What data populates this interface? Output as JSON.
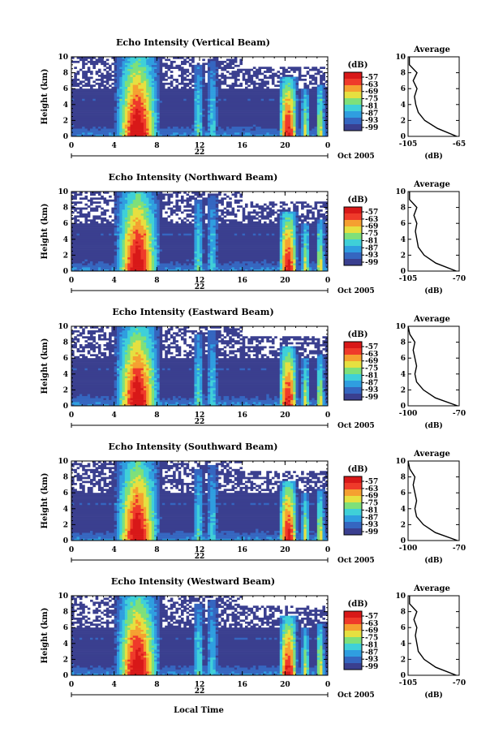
{
  "figure": {
    "xlabel": "Local Time",
    "colorbar_title": "(dB)",
    "colorbar_ticks": [
      "-57",
      "-63",
      "-69",
      "-75",
      "-81",
      "-87",
      "-93",
      "-99"
    ],
    "colormap": [
      "#ffffff",
      "#3a3f8f",
      "#3566c0",
      "#2f9ee0",
      "#3fd0d8",
      "#7ee07a",
      "#e6e040",
      "#f5a030",
      "#ef3a2a",
      "#d81818"
    ]
  },
  "chart_data": [
    {
      "type": "heatmap",
      "title": "Echo Intensity (Vertical Beam)",
      "ylabel": "Height (km)",
      "xlabel": "",
      "x_ticks": [
        "0",
        "4",
        "8",
        "12",
        "16",
        "20",
        "0"
      ],
      "y_ticks": [
        "0",
        "2",
        "4",
        "6",
        "8",
        "10"
      ],
      "xlim": [
        0,
        24
      ],
      "ylim": [
        0,
        10
      ],
      "date_mid": "22",
      "date_right": "Oct 2005",
      "colorbar": {
        "label": "(dB)",
        "range": [
          -99,
          -57
        ]
      },
      "profile": {
        "title": "Average",
        "xlabel": "(dB)",
        "x_ticks": [
          "-105",
          "-65"
        ],
        "xlim": [
          -105,
          -65
        ],
        "height_km": [
          0,
          1,
          2,
          3,
          4,
          5,
          6,
          7,
          8,
          9,
          10
        ],
        "db": [
          -67,
          -82,
          -92,
          -97,
          -99,
          -100,
          -98,
          -101,
          -98,
          -104,
          -104
        ]
      }
    },
    {
      "type": "heatmap",
      "title": "Echo Intensity (Northward Beam)",
      "ylabel": "Height (km)",
      "xlabel": "",
      "x_ticks": [
        "0",
        "4",
        "8",
        "12",
        "16",
        "20",
        "0"
      ],
      "y_ticks": [
        "0",
        "2",
        "4",
        "6",
        "8",
        "10"
      ],
      "xlim": [
        0,
        24
      ],
      "ylim": [
        0,
        10
      ],
      "date_mid": "22",
      "date_right": "Oct 2005",
      "colorbar": {
        "label": "(dB)",
        "range": [
          -99,
          -57
        ]
      },
      "profile": {
        "title": "Average",
        "xlabel": "(dB)",
        "x_ticks": [
          "-105",
          "-70"
        ],
        "xlim": [
          -105,
          -70
        ],
        "height_km": [
          0,
          1,
          2,
          3,
          4,
          5,
          6,
          7,
          8,
          9,
          10
        ],
        "db": [
          -72,
          -86,
          -94,
          -98,
          -99,
          -100,
          -99,
          -101,
          -99,
          -104,
          -104
        ]
      }
    },
    {
      "type": "heatmap",
      "title": "Echo Intensity (Eastward Beam)",
      "ylabel": "Height (km)",
      "xlabel": "",
      "x_ticks": [
        "0",
        "4",
        "8",
        "12",
        "16",
        "20",
        "0"
      ],
      "y_ticks": [
        "0",
        "2",
        "4",
        "6",
        "8",
        "10"
      ],
      "xlim": [
        0,
        24
      ],
      "ylim": [
        0,
        10
      ],
      "date_mid": "22",
      "date_right": "Oct 2005",
      "colorbar": {
        "label": "(dB)",
        "range": [
          -99,
          -57
        ]
      },
      "profile": {
        "title": "Average",
        "xlabel": "(dB)",
        "x_ticks": [
          "-100",
          "-70"
        ],
        "xlim": [
          -100,
          -70
        ],
        "height_km": [
          0,
          1,
          2,
          3,
          4,
          5,
          6,
          7,
          8,
          9,
          10
        ],
        "db": [
          -71,
          -84,
          -91,
          -95,
          -96,
          -95,
          -96,
          -97,
          -96,
          -99,
          -100
        ]
      }
    },
    {
      "type": "heatmap",
      "title": "Echo Intensity (Southward Beam)",
      "ylabel": "Height (km)",
      "xlabel": "",
      "x_ticks": [
        "0",
        "4",
        "8",
        "12",
        "16",
        "20",
        "0"
      ],
      "y_ticks": [
        "0",
        "2",
        "4",
        "6",
        "8",
        "10"
      ],
      "xlim": [
        0,
        24
      ],
      "ylim": [
        0,
        10
      ],
      "date_mid": "22",
      "date_right": "Oct 2005",
      "colorbar": {
        "label": "(dB)",
        "range": [
          -99,
          -57
        ]
      },
      "profile": {
        "title": "Average",
        "xlabel": "(dB)",
        "x_ticks": [
          "-100",
          "-70"
        ],
        "xlim": [
          -100,
          -70
        ],
        "height_km": [
          0,
          1,
          2,
          3,
          4,
          5,
          6,
          7,
          8,
          9,
          10
        ],
        "db": [
          -71,
          -84,
          -91,
          -95,
          -96,
          -95,
          -96,
          -97,
          -96,
          -99,
          -100
        ]
      }
    },
    {
      "type": "heatmap",
      "title": "Echo Intensity (Westward Beam)",
      "ylabel": "Height (km)",
      "xlabel": "Local Time",
      "x_ticks": [
        "0",
        "4",
        "8",
        "12",
        "16",
        "20",
        "0"
      ],
      "y_ticks": [
        "0",
        "2",
        "4",
        "6",
        "8",
        "10"
      ],
      "xlim": [
        0,
        24
      ],
      "ylim": [
        0,
        10
      ],
      "date_mid": "22",
      "date_right": "Oct 2005",
      "colorbar": {
        "label": "(dB)",
        "range": [
          -99,
          -57
        ]
      },
      "profile": {
        "title": "Average",
        "xlabel": "(dB)",
        "x_ticks": [
          "-105",
          "-70"
        ],
        "xlim": [
          -105,
          -70
        ],
        "height_km": [
          0,
          1,
          2,
          3,
          4,
          5,
          6,
          7,
          8,
          9,
          10
        ],
        "db": [
          -72,
          -86,
          -94,
          -98,
          -99,
          -100,
          -99,
          -101,
          -99,
          -104,
          -104
        ]
      }
    }
  ]
}
